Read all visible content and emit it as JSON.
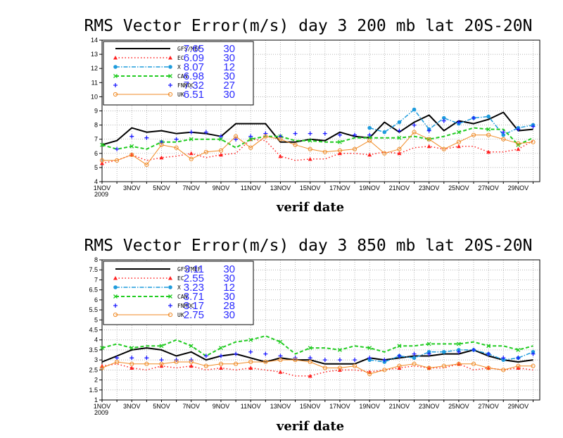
{
  "chart_data": [
    {
      "type": "line",
      "title": "RMS Vector Error(m/s) day 3  200 mb    lat 20S-20N",
      "xlabel": "verif date",
      "ylabel": "",
      "ylim": [
        4,
        14
      ],
      "yticks": [
        4,
        5,
        6,
        7,
        8,
        9,
        10,
        11,
        12,
        13,
        14
      ],
      "x": [
        1,
        2,
        3,
        4,
        5,
        6,
        7,
        8,
        9,
        10,
        11,
        12,
        13,
        14,
        15,
        16,
        17,
        18,
        19,
        20,
        21,
        22,
        23,
        24,
        25,
        26,
        27,
        28,
        29,
        30
      ],
      "xticks": [
        {
          "x": 1,
          "label": "1NOV",
          "sub": "2009"
        },
        {
          "x": 3,
          "label": "3NOV"
        },
        {
          "x": 5,
          "label": "5NOV"
        },
        {
          "x": 7,
          "label": "7NOV"
        },
        {
          "x": 9,
          "label": "9NOV"
        },
        {
          "x": 11,
          "label": "11NOV"
        },
        {
          "x": 13,
          "label": "13NOV"
        },
        {
          "x": 15,
          "label": "15NOV"
        },
        {
          "x": 17,
          "label": "17NOV"
        },
        {
          "x": 19,
          "label": "19NOV"
        },
        {
          "x": 21,
          "label": "21NOV"
        },
        {
          "x": 23,
          "label": "23NOV"
        },
        {
          "x": 25,
          "label": "25NOV"
        },
        {
          "x": 27,
          "label": "27NOV"
        },
        {
          "x": 29,
          "label": "29NOV"
        }
      ],
      "grid": true,
      "legend_position": "top-left",
      "series": [
        {
          "name": "GFS/MEF",
          "mean": "7.65",
          "count": "30",
          "color": "#000000",
          "marker": "none",
          "dash": "solid",
          "width": 2,
          "values": [
            6.6,
            6.9,
            7.8,
            7.5,
            7.6,
            7.4,
            7.5,
            7.4,
            7.2,
            8.1,
            8.1,
            8.1,
            6.8,
            6.8,
            7.0,
            6.9,
            7.5,
            7.2,
            7.1,
            8.2,
            7.5,
            8.2,
            8.7,
            7.6,
            8.3,
            8.1,
            8.4,
            8.9,
            7.6,
            7.7
          ]
        },
        {
          "name": "EC",
          "mean": "6.09",
          "count": "30",
          "color": "#ff2020",
          "marker": "triangle",
          "dash": "dot",
          "width": 1.5,
          "values": [
            5.3,
            5.5,
            5.9,
            5.5,
            5.7,
            5.8,
            6.0,
            5.7,
            5.9,
            6.0,
            7.0,
            6.9,
            5.8,
            5.5,
            5.6,
            5.6,
            6.0,
            6.0,
            5.9,
            6.1,
            6.0,
            6.4,
            6.5,
            6.3,
            6.5,
            6.5,
            6.1,
            6.1,
            6.3,
            6.9
          ]
        },
        {
          "name": "X",
          "mean": "8.07",
          "count": "12",
          "color": "#1e9bdc",
          "marker": "circle",
          "dash": "dashdot",
          "width": 1.5,
          "values": [
            null,
            null,
            null,
            null,
            null,
            null,
            null,
            null,
            null,
            null,
            null,
            null,
            null,
            null,
            null,
            null,
            null,
            null,
            7.8,
            7.5,
            8.2,
            9.1,
            7.7,
            8.5,
            8.1,
            8.5,
            8.6,
            7.3,
            7.8,
            8.0
          ]
        },
        {
          "name": "CAN",
          "mean": "6.98",
          "count": "30",
          "color": "#22cc22",
          "marker": "x",
          "dash": "dash",
          "width": 2,
          "values": [
            6.6,
            6.3,
            6.5,
            6.3,
            6.8,
            6.8,
            7.0,
            7.0,
            7.0,
            6.4,
            7.0,
            7.2,
            7.2,
            6.9,
            6.9,
            6.8,
            6.8,
            7.1,
            7.1,
            7.1,
            7.1,
            7.2,
            7.0,
            7.2,
            7.5,
            7.8,
            7.7,
            7.7,
            6.6,
            7.1
          ]
        },
        {
          "name": "FNMOC",
          "mean": "7.32",
          "count": "27",
          "color": "#1a1aff",
          "marker": "plus",
          "dash": "none",
          "width": 1,
          "values": [
            null,
            6.3,
            7.2,
            7.1,
            6.8,
            7.0,
            7.5,
            7.5,
            7.2,
            7.0,
            7.2,
            7.4,
            7.2,
            7.4,
            7.4,
            7.4,
            7.3,
            7.3,
            7.3,
            null,
            7.6,
            8.0,
            7.6,
            8.3,
            8.2,
            8.5,
            null,
            7.5,
            7.7,
            7.9
          ]
        },
        {
          "name": "UK",
          "mean": "6.51",
          "count": "30",
          "color": "#f08a24",
          "marker": "ocircle",
          "dash": "solid",
          "width": 1,
          "values": [
            5.5,
            5.5,
            5.9,
            5.2,
            6.6,
            6.4,
            5.6,
            6.1,
            6.2,
            7.2,
            6.4,
            7.2,
            7.0,
            6.6,
            6.3,
            6.1,
            6.2,
            6.3,
            6.9,
            6.0,
            6.3,
            7.5,
            7.0,
            6.3,
            6.8,
            7.3,
            7.3,
            7.0,
            6.7,
            6.8
          ]
        }
      ]
    },
    {
      "type": "line",
      "title": "RMS Vector Error(m/s) day 3  850 mb    lat 20S-20N",
      "xlabel": "verif date",
      "ylabel": "",
      "ylim": [
        1,
        8
      ],
      "yticks": [
        1,
        1.5,
        2,
        2.5,
        3,
        3.5,
        4,
        4.5,
        5,
        5.5,
        6,
        6.5,
        7,
        7.5,
        8
      ],
      "x": [
        1,
        2,
        3,
        4,
        5,
        6,
        7,
        8,
        9,
        10,
        11,
        12,
        13,
        14,
        15,
        16,
        17,
        18,
        19,
        20,
        21,
        22,
        23,
        24,
        25,
        26,
        27,
        28,
        29,
        30
      ],
      "xticks": [
        {
          "x": 1,
          "label": "1NOV",
          "sub": "2009"
        },
        {
          "x": 3,
          "label": "3NOV"
        },
        {
          "x": 5,
          "label": "5NOV"
        },
        {
          "x": 7,
          "label": "7NOV"
        },
        {
          "x": 9,
          "label": "9NOV"
        },
        {
          "x": 11,
          "label": "11NOV"
        },
        {
          "x": 13,
          "label": "13NOV"
        },
        {
          "x": 15,
          "label": "15NOV"
        },
        {
          "x": 17,
          "label": "17NOV"
        },
        {
          "x": 19,
          "label": "19NOV"
        },
        {
          "x": 21,
          "label": "21NOV"
        },
        {
          "x": 23,
          "label": "23NOV"
        },
        {
          "x": 25,
          "label": "25NOV"
        },
        {
          "x": 27,
          "label": "27NOV"
        },
        {
          "x": 29,
          "label": "29NOV"
        }
      ],
      "grid": true,
      "legend_position": "top-left",
      "series": [
        {
          "name": "GFS/MEF",
          "mean": "3.11",
          "count": "30",
          "color": "#000000",
          "marker": "none",
          "dash": "solid",
          "width": 2,
          "values": [
            2.9,
            3.2,
            3.5,
            3.6,
            3.5,
            3.2,
            3.4,
            3.0,
            3.2,
            3.3,
            3.1,
            2.9,
            3.1,
            3.0,
            3.0,
            2.8,
            2.8,
            2.8,
            3.1,
            3.0,
            3.1,
            3.2,
            3.2,
            3.3,
            3.3,
            3.5,
            3.2,
            3.0,
            2.9,
            3.0
          ]
        },
        {
          "name": "EC",
          "mean": "2.55",
          "count": "30",
          "color": "#ff2020",
          "marker": "triangle",
          "dash": "dot",
          "width": 1.5,
          "values": [
            2.7,
            2.8,
            2.6,
            2.5,
            2.7,
            2.6,
            2.7,
            2.5,
            2.6,
            2.5,
            2.6,
            2.5,
            2.4,
            2.2,
            2.2,
            2.4,
            2.5,
            2.5,
            2.4,
            2.5,
            2.6,
            2.7,
            2.6,
            2.6,
            2.8,
            2.5,
            2.6,
            2.5,
            2.6,
            2.5
          ]
        },
        {
          "name": "X",
          "mean": "3.23",
          "count": "12",
          "color": "#1e9bdc",
          "marker": "circle",
          "dash": "dashdot",
          "width": 1.5,
          "values": [
            null,
            null,
            null,
            null,
            null,
            null,
            null,
            null,
            null,
            null,
            null,
            null,
            null,
            null,
            null,
            null,
            null,
            null,
            3.0,
            2.9,
            3.2,
            3.1,
            3.4,
            3.4,
            3.5,
            3.5,
            3.3,
            3.0,
            3.1,
            3.4
          ]
        },
        {
          "name": "CAN",
          "mean": "3.71",
          "count": "30",
          "color": "#22cc22",
          "marker": "x",
          "dash": "dash",
          "width": 2,
          "values": [
            3.6,
            3.8,
            3.6,
            3.7,
            3.7,
            4.0,
            3.7,
            3.2,
            3.6,
            3.9,
            4.0,
            4.2,
            3.9,
            3.3,
            3.6,
            3.6,
            3.5,
            3.7,
            3.6,
            3.4,
            3.7,
            3.7,
            3.8,
            3.8,
            3.8,
            3.9,
            3.7,
            3.7,
            3.5,
            3.7
          ]
        },
        {
          "name": "FNMOC",
          "mean": "3.17",
          "count": "28",
          "color": "#1a1aff",
          "marker": "plus",
          "dash": "none",
          "width": 1,
          "values": [
            null,
            3.1,
            3.1,
            3.1,
            3.0,
            3.0,
            3.0,
            3.2,
            3.2,
            3.3,
            3.4,
            3.3,
            3.2,
            3.1,
            3.1,
            3.0,
            3.0,
            3.0,
            3.1,
            3.0,
            3.2,
            3.3,
            3.3,
            null,
            3.4,
            3.5,
            3.3,
            3.1,
            3.1,
            3.3
          ]
        },
        {
          "name": "UK",
          "mean": "2.75",
          "count": "30",
          "color": "#f08a24",
          "marker": "ocircle",
          "dash": "solid",
          "width": 1,
          "values": [
            2.6,
            2.9,
            2.8,
            2.8,
            2.8,
            2.9,
            2.9,
            2.7,
            2.8,
            2.8,
            2.9,
            2.9,
            3.0,
            3.0,
            2.9,
            2.6,
            2.6,
            2.7,
            2.3,
            2.5,
            2.7,
            2.8,
            2.6,
            2.7,
            2.8,
            2.8,
            2.6,
            2.5,
            2.7,
            2.7
          ]
        }
      ]
    }
  ]
}
